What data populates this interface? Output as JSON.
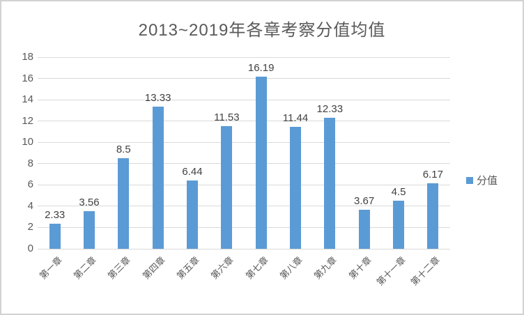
{
  "window": {
    "background": "#ffffff",
    "border_color": "#d2d2d2"
  },
  "chart_data": {
    "type": "bar",
    "title": "2013~2019年各章考察分值均值",
    "categories": [
      "第一章",
      "第二章",
      "第三章",
      "第四章",
      "第五章",
      "第六章",
      "第七章",
      "第八章",
      "第九章",
      "第十章",
      "第十一章",
      "第十二章"
    ],
    "series": [
      {
        "name": "分值",
        "values": [
          2.33,
          3.56,
          8.5,
          13.33,
          6.44,
          11.53,
          16.19,
          11.44,
          12.33,
          3.67,
          4.5,
          6.17
        ]
      }
    ],
    "data_labels": [
      "2.33",
      "3.56",
      "8.5",
      "13.33",
      "6.44",
      "11.53",
      "16.19",
      "11.44",
      "12.33",
      "3.67",
      "4.5",
      "6.17"
    ],
    "xlabel": "",
    "ylabel": "",
    "ylim": [
      0,
      18
    ],
    "ytick_step": 2,
    "yticks": [
      0,
      2,
      4,
      6,
      8,
      10,
      12,
      14,
      16,
      18
    ],
    "grid": true,
    "x_label_rotation_deg": 45,
    "legend": {
      "label": "分值",
      "position": "right",
      "marker_color": "#5b9bd5"
    },
    "colors": {
      "bar": "#5b9bd5",
      "gridline": "#d9d9d9",
      "title_text": "#595959",
      "axis_tick_text": "#595959",
      "data_label_text": "#404040"
    }
  }
}
